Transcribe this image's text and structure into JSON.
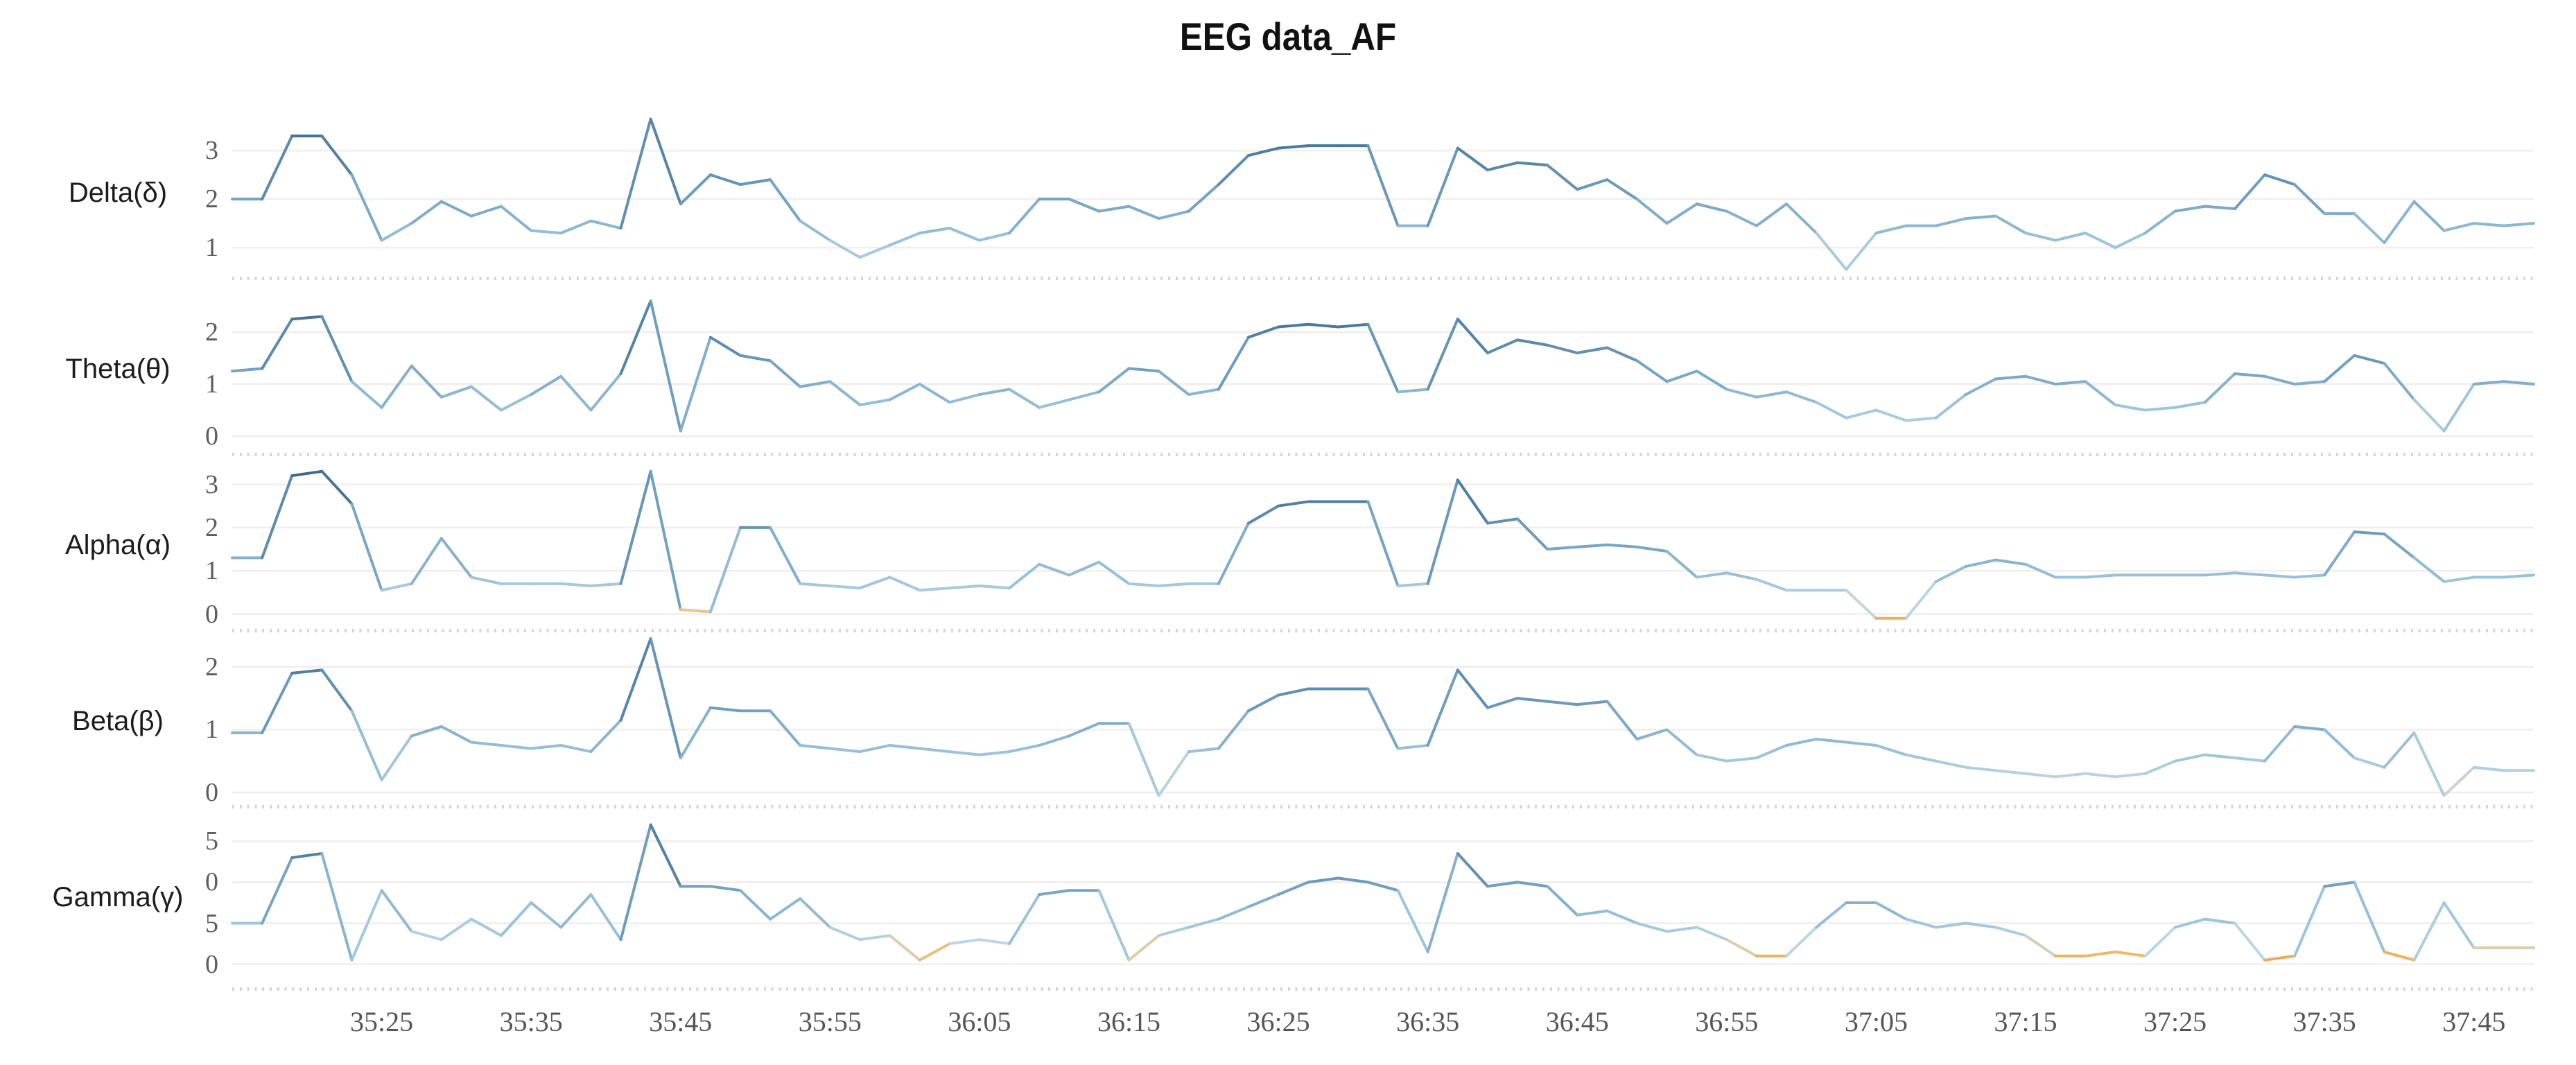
{
  "chart_data": {
    "type": "line",
    "title": "EEG data_AF",
    "x_axis": {
      "tick_labels": [
        "35:25",
        "35:35",
        "35:45",
        "35:55",
        "36:05",
        "36:15",
        "36:25",
        "36:35",
        "36:45",
        "36:55",
        "37:05",
        "37:15",
        "37:25",
        "37:35",
        "37:45"
      ],
      "tick_interval_s": 10,
      "first_tick_offset_s": 10,
      "span_s": 154,
      "sample_step_s": 2,
      "grid": "horizontal-only",
      "minor_ticks": "0.5s dashes under each subplot"
    },
    "style": {
      "grid_color": "#f3edec",
      "tick_text_color": "#5d5d5d",
      "label_text_color": "#1c1c1c",
      "minor_tick_color": "#cccccc",
      "line_low_color": "#e69a3a",
      "line_mid_color": "#9cc4dc",
      "line_high_color": "#3a648a",
      "colormap": [
        {
          "t": 0.0,
          "c": "#e69a3a"
        },
        {
          "t": 0.07,
          "c": "#eeb766"
        },
        {
          "t": 0.11,
          "c": "#e3cba4"
        },
        {
          "t": 0.15,
          "c": "#bdd7e4"
        },
        {
          "t": 0.3,
          "c": "#9cc4dc"
        },
        {
          "t": 0.55,
          "c": "#6f9fc2"
        },
        {
          "t": 0.8,
          "c": "#4b7ba0"
        },
        {
          "t": 1.0,
          "c": "#3a648a"
        }
      ]
    },
    "series": [
      {
        "id": "delta",
        "name": "Delta(δ)",
        "y_ticks": [
          {
            "label": "3",
            "value": 3
          },
          {
            "label": "2",
            "value": 2
          },
          {
            "label": "1",
            "value": 1
          }
        ],
        "axis_top": 3.96,
        "axis_bottom": 0.53,
        "color_min": 0.0,
        "color_max": 3.8,
        "values": [
          2.0,
          2.0,
          3.3,
          3.3,
          2.5,
          1.15,
          1.5,
          1.95,
          1.65,
          1.85,
          1.35,
          1.3,
          1.55,
          1.4,
          3.65,
          1.9,
          2.5,
          2.3,
          2.4,
          1.55,
          1.15,
          0.8,
          1.05,
          1.3,
          1.4,
          1.15,
          1.3,
          2.0,
          2.0,
          1.75,
          1.85,
          1.6,
          1.75,
          2.3,
          2.9,
          3.05,
          3.1,
          3.1,
          3.1,
          1.45,
          1.45,
          3.05,
          2.6,
          2.75,
          2.7,
          2.2,
          2.4,
          2.0,
          1.5,
          1.9,
          1.75,
          1.45,
          1.9,
          1.3,
          0.55,
          1.3,
          1.45,
          1.45,
          1.6,
          1.65,
          1.3,
          1.15,
          1.3,
          1.0,
          1.3,
          1.75,
          1.85,
          1.8,
          2.5,
          2.3,
          1.7,
          1.7,
          1.1,
          1.95,
          1.35,
          1.5,
          1.45,
          1.5
        ]
      },
      {
        "id": "theta",
        "name": "Theta(θ)",
        "y_ticks": [
          {
            "label": "2",
            "value": 2
          },
          {
            "label": "1",
            "value": 1
          },
          {
            "label": "0",
            "value": 0
          }
        ],
        "axis_top": 3.0,
        "axis_bottom": -0.2,
        "color_min": -0.35,
        "color_max": 2.7,
        "values": [
          1.25,
          1.3,
          2.25,
          2.3,
          1.05,
          0.55,
          1.35,
          0.75,
          0.95,
          0.5,
          0.8,
          1.15,
          0.5,
          1.2,
          2.6,
          0.1,
          1.9,
          1.55,
          1.45,
          0.95,
          1.05,
          0.6,
          0.7,
          1.0,
          0.65,
          0.8,
          0.9,
          0.55,
          0.7,
          0.85,
          1.3,
          1.25,
          0.8,
          0.9,
          1.9,
          2.1,
          2.15,
          2.1,
          2.15,
          0.85,
          0.9,
          2.25,
          1.6,
          1.85,
          1.75,
          1.6,
          1.7,
          1.45,
          1.05,
          1.25,
          0.9,
          0.75,
          0.85,
          0.65,
          0.35,
          0.5,
          0.3,
          0.35,
          0.8,
          1.1,
          1.15,
          1.0,
          1.05,
          0.6,
          0.5,
          0.55,
          0.65,
          1.2,
          1.15,
          1.0,
          1.05,
          1.55,
          1.4,
          0.7,
          0.1,
          1.0,
          1.05,
          1.0
        ]
      },
      {
        "id": "alpha",
        "name": "Alpha(α)",
        "y_ticks": [
          {
            "label": "3",
            "value": 3
          },
          {
            "label": "2",
            "value": 2
          },
          {
            "label": "1",
            "value": 1
          },
          {
            "label": "0",
            "value": 0
          }
        ],
        "axis_top": 3.65,
        "axis_bottom": -0.2,
        "color_min": -0.3,
        "color_max": 3.4,
        "values": [
          1.3,
          1.3,
          3.2,
          3.3,
          2.55,
          0.55,
          0.7,
          1.75,
          0.85,
          0.7,
          0.7,
          0.7,
          0.65,
          0.7,
          3.3,
          0.1,
          0.05,
          2.0,
          2.0,
          0.7,
          0.65,
          0.6,
          0.85,
          0.55,
          0.6,
          0.65,
          0.6,
          1.15,
          0.9,
          1.2,
          0.7,
          0.65,
          0.7,
          0.7,
          2.1,
          2.5,
          2.6,
          2.6,
          2.6,
          0.65,
          0.7,
          3.1,
          2.1,
          2.2,
          1.5,
          1.55,
          1.6,
          1.55,
          1.45,
          0.85,
          0.95,
          0.8,
          0.55,
          0.55,
          0.55,
          -0.1,
          -0.1,
          0.75,
          1.1,
          1.25,
          1.15,
          0.85,
          0.85,
          0.9,
          0.9,
          0.9,
          0.9,
          0.95,
          0.9,
          0.85,
          0.9,
          1.9,
          1.85,
          1.3,
          0.75,
          0.85,
          0.85,
          0.9
        ]
      },
      {
        "id": "beta",
        "name": "Beta(β)",
        "y_ticks": [
          {
            "label": "2",
            "value": 2
          },
          {
            "label": "1",
            "value": 1
          },
          {
            "label": "0",
            "value": 0
          }
        ],
        "axis_top": 2.55,
        "axis_bottom": -0.1,
        "color_min": -0.2,
        "color_max": 2.55,
        "values": [
          0.95,
          0.95,
          1.9,
          1.95,
          1.3,
          0.2,
          0.9,
          1.05,
          0.8,
          0.75,
          0.7,
          0.75,
          0.65,
          1.15,
          2.45,
          0.55,
          1.35,
          1.3,
          1.3,
          0.75,
          0.7,
          0.65,
          0.75,
          0.7,
          0.65,
          0.6,
          0.65,
          0.75,
          0.9,
          1.1,
          1.1,
          -0.05,
          0.65,
          0.7,
          1.3,
          1.55,
          1.65,
          1.65,
          1.65,
          0.7,
          0.75,
          1.95,
          1.35,
          1.5,
          1.45,
          1.4,
          1.45,
          0.85,
          1.0,
          0.6,
          0.5,
          0.55,
          0.75,
          0.85,
          0.8,
          0.75,
          0.6,
          0.5,
          0.4,
          0.35,
          0.3,
          0.25,
          0.3,
          0.25,
          0.3,
          0.5,
          0.6,
          0.55,
          0.5,
          1.05,
          1.0,
          0.55,
          0.4,
          0.95,
          -0.05,
          0.4,
          0.35,
          0.35
        ]
      },
      {
        "id": "gamma",
        "name": "Gamma(γ)",
        "y_ticks": [
          {
            "label": "5",
            "value": 1.5
          },
          {
            "label": "0",
            "value": 1.0
          },
          {
            "label": "5",
            "value": 0.5
          },
          {
            "label": "0",
            "value": 0.0
          }
        ],
        "axis_top": 1.9,
        "axis_bottom": -0.13,
        "color_min": 0.0,
        "color_max": 1.75,
        "values": [
          0.5,
          0.5,
          1.3,
          1.35,
          0.05,
          0.9,
          0.4,
          0.3,
          0.55,
          0.35,
          0.75,
          0.45,
          0.85,
          0.3,
          1.7,
          0.95,
          0.95,
          0.9,
          0.55,
          0.8,
          0.45,
          0.3,
          0.35,
          0.05,
          0.25,
          0.3,
          0.25,
          0.85,
          0.9,
          0.9,
          0.05,
          0.35,
          0.45,
          0.55,
          0.7,
          0.85,
          1.0,
          1.05,
          1.0,
          0.9,
          0.15,
          1.35,
          0.95,
          1.0,
          0.95,
          0.6,
          0.65,
          0.5,
          0.4,
          0.45,
          0.3,
          0.1,
          0.1,
          0.45,
          0.75,
          0.75,
          0.55,
          0.45,
          0.5,
          0.45,
          0.35,
          0.1,
          0.1,
          0.15,
          0.1,
          0.45,
          0.55,
          0.5,
          0.05,
          0.1,
          0.95,
          1.0,
          0.15,
          0.05,
          0.75,
          0.2,
          0.2,
          0.2
        ]
      }
    ]
  }
}
